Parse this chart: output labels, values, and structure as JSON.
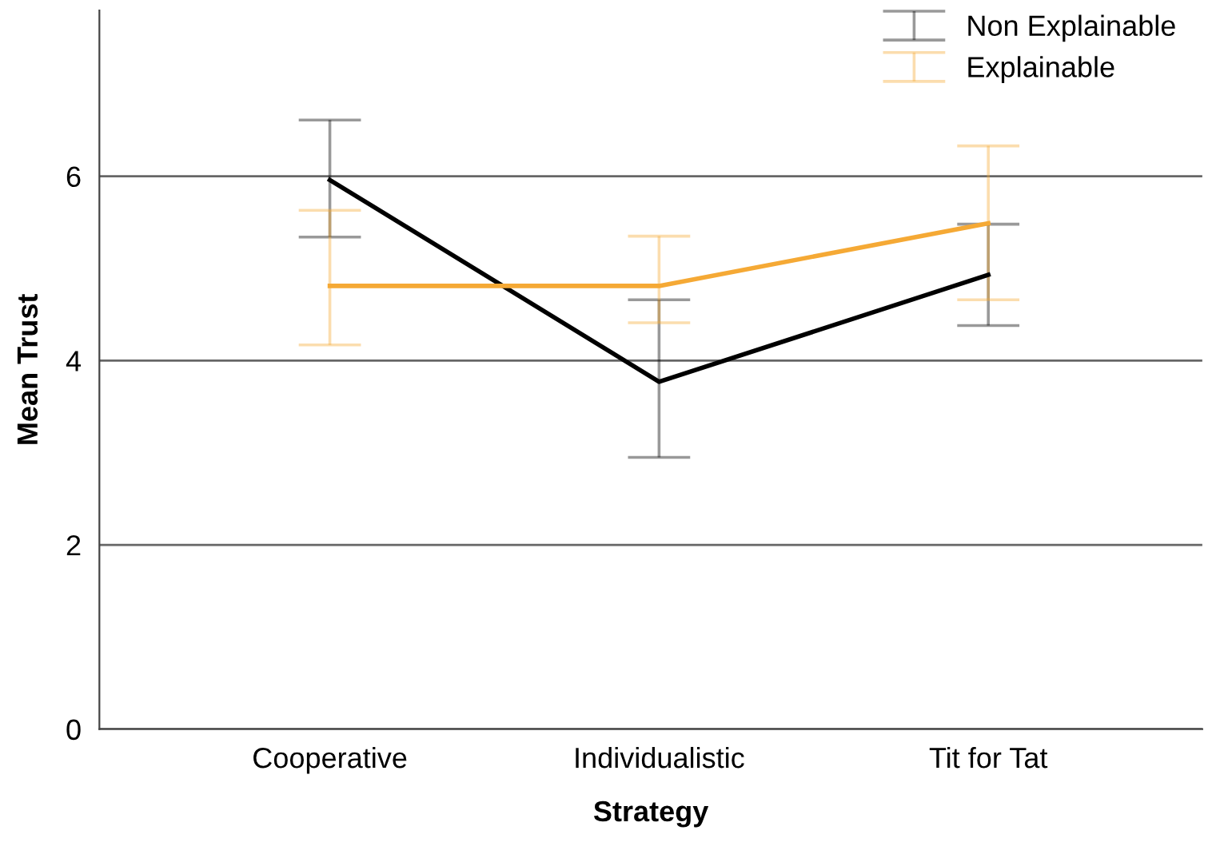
{
  "chart_data": {
    "type": "line",
    "xlabel": "Strategy",
    "ylabel": "Mean Trust",
    "categories": [
      "Cooperative",
      "Individualistic",
      "Tit for Tat"
    ],
    "series": [
      {
        "name": "Non Explainable",
        "color": "#000000",
        "values": [
          5.96,
          3.77,
          4.93
        ],
        "errors": [
          [
            5.34,
            6.61
          ],
          [
            2.95,
            4.66
          ],
          [
            4.38,
            5.48
          ]
        ]
      },
      {
        "name": "Explainable",
        "color": "#f5a935",
        "values": [
          4.81,
          4.81,
          5.49
        ],
        "errors": [
          [
            4.17,
            5.63
          ],
          [
            4.41,
            5.35
          ],
          [
            4.66,
            6.33
          ]
        ]
      }
    ],
    "ylim": [
      0,
      7.8
    ],
    "yticks": [
      0,
      2,
      4,
      6
    ],
    "grid": "y",
    "legend": "top right",
    "marker": "none",
    "line_style": "solid"
  }
}
